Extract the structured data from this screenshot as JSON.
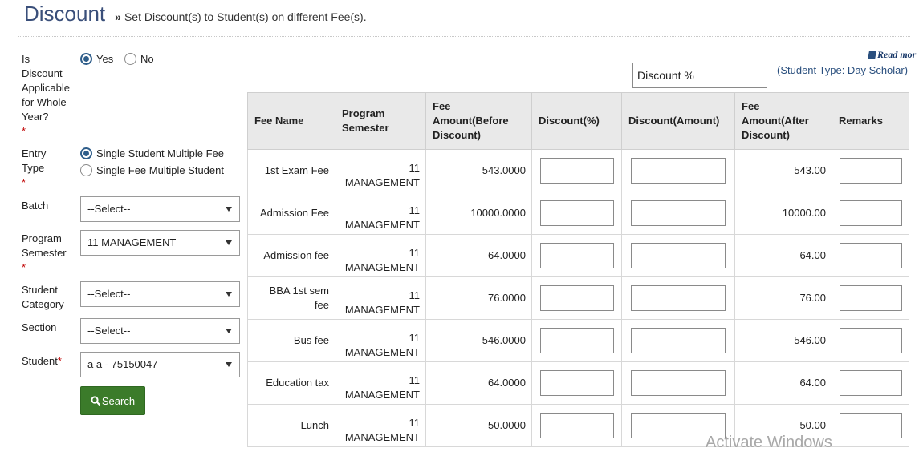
{
  "header": {
    "title": "Discount",
    "subtitle_marker": "»",
    "subtitle": "Set Discount(s) to Student(s) on different Fee(s)."
  },
  "form": {
    "whole_year": {
      "label_lines": [
        "Is",
        "Discount",
        "Applicable",
        "for Whole",
        "Year?"
      ],
      "required_mark": "*",
      "options": [
        {
          "label": "Yes",
          "checked": true
        },
        {
          "label": "No",
          "checked": false
        }
      ]
    },
    "entry_type": {
      "label_lines": [
        "Entry",
        "Type"
      ],
      "required_mark": "*",
      "options": [
        {
          "label": "Single Student Multiple Fee",
          "checked": true
        },
        {
          "label": "Single Fee Multiple Student",
          "checked": false
        }
      ]
    },
    "batch": {
      "label": "Batch",
      "value": "--Select--"
    },
    "program_semester": {
      "label_lines": [
        "Program",
        "Semester"
      ],
      "required_mark": "*",
      "value": "11 MANAGEMENT"
    },
    "student_category": {
      "label_lines": [
        "Student",
        "Category"
      ],
      "value": "--Select--"
    },
    "section": {
      "label": "Section",
      "value": "--Select--"
    },
    "student": {
      "label": "Student",
      "required_mark": "*",
      "value": "a a - 75150047"
    },
    "search_label": "Search"
  },
  "right_panel": {
    "read_more": "Read mor",
    "discount_type_value": "Discount %",
    "student_type": "(Student Type: Day Scholar)"
  },
  "table": {
    "headers": {
      "fee_name": "Fee Name",
      "program_semester": [
        "Program",
        "Semester"
      ],
      "fee_before": [
        "Fee",
        "Amount(Before",
        "Discount)"
      ],
      "discount_pct": "Discount(%)",
      "discount_amt": "Discount(Amount)",
      "fee_after": [
        "Fee",
        "Amount(After",
        "Discount)"
      ],
      "remarks": "Remarks"
    },
    "rows": [
      {
        "fee_name": "1st Exam Fee",
        "ps_num": "11",
        "ps_name": "MANAGEMENT",
        "before": "543.0000",
        "after": "543.00"
      },
      {
        "fee_name": "Admission Fee",
        "ps_num": "11",
        "ps_name": "MANAGEMENT",
        "before": "10000.0000",
        "after": "10000.00"
      },
      {
        "fee_name": "Admission fee",
        "ps_num": "11",
        "ps_name": "MANAGEMENT",
        "before": "64.0000",
        "after": "64.00"
      },
      {
        "fee_name": "BBA 1st sem fee",
        "ps_num": "11",
        "ps_name": "MANAGEMENT",
        "before": "76.0000",
        "after": "76.00"
      },
      {
        "fee_name": "Bus fee",
        "ps_num": "11",
        "ps_name": "MANAGEMENT",
        "before": "546.0000",
        "after": "546.00"
      },
      {
        "fee_name": "Education tax",
        "ps_num": "11",
        "ps_name": "MANAGEMENT",
        "before": "64.0000",
        "after": "64.00"
      },
      {
        "fee_name": "Lunch",
        "ps_num": "11",
        "ps_name": "MANAGEMENT",
        "before": "50.0000",
        "after": "50.00"
      }
    ]
  },
  "watermark": "Activate Windows",
  "colors": {
    "title": "#3a4f7a",
    "search_button": "#3b7b2a",
    "required": "#c00000",
    "link": "#2a4f7e"
  }
}
